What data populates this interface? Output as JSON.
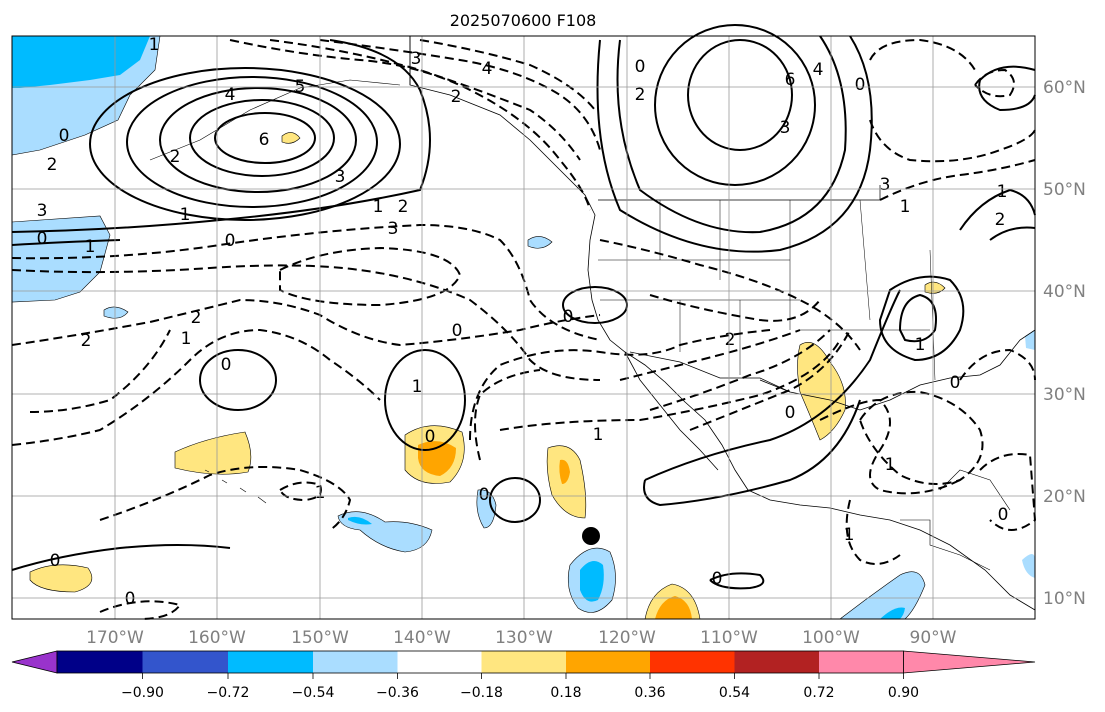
{
  "title": "2025070600 F108",
  "map": {
    "lon_labels": [
      "170°W",
      "160°W",
      "150°W",
      "140°W",
      "130°W",
      "120°W",
      "110°W",
      "100°W",
      "90°W"
    ],
    "lat_labels": [
      "60°N",
      "50°N",
      "40°N",
      "30°N",
      "20°N",
      "10°N"
    ]
  },
  "colorbar": {
    "colors": [
      "#9933cc",
      "#000088",
      "#3355cc",
      "#00bbff",
      "#aaddff",
      "#ffffff",
      "#ffe680",
      "#ffa500",
      "#ff3300",
      "#b22222",
      "#ff88aa"
    ],
    "tick_labels": [
      "−0.90",
      "−0.72",
      "−0.54",
      "−0.36",
      "−0.18",
      "0.18",
      "0.36",
      "0.54",
      "0.72",
      "0.90"
    ]
  },
  "contour_labels": [
    "3",
    "4",
    "2",
    "1",
    "0",
    "3",
    "2",
    "1",
    "0",
    "6",
    "5",
    "4",
    "3",
    "2",
    "1",
    "0",
    "6",
    "3",
    "2",
    "0",
    "4",
    "3",
    "2",
    "1",
    "0",
    "2",
    "1",
    "0",
    "2",
    "1",
    "0",
    "2",
    "3",
    "1",
    "2",
    "1",
    "0",
    "1",
    "0",
    "0",
    "1",
    "0",
    "1",
    "0",
    "0",
    "1",
    "1",
    "0",
    "0",
    "0"
  ],
  "legend_marker": "storm-center-dot"
}
